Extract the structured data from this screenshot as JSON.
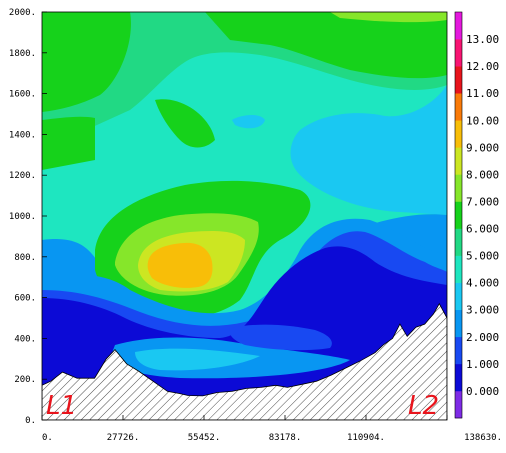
{
  "chart_data": {
    "type": "heatmap",
    "title": "",
    "xlabel": "",
    "ylabel": "",
    "xlim": [
      0,
      138630
    ],
    "ylim": [
      0,
      2000
    ],
    "x_ticks": [
      "0.",
      "27726.",
      "55452.",
      "83178.",
      "110904.",
      "138630."
    ],
    "y_ticks": [
      "0.",
      "200.",
      "400.",
      "600.",
      "800.",
      "1000.",
      "1200.",
      "1400.",
      "1600.",
      "1800.",
      "2000."
    ],
    "colorbar": {
      "labels": [
        "0.000",
        "1.000",
        "2.000",
        "3.000",
        "4.000",
        "5.000",
        "6.000",
        "7.000",
        "8.000",
        "9.000",
        "10.00",
        "11.00",
        "12.00",
        "13.00"
      ],
      "range": [
        -1,
        14
      ],
      "colors": [
        "#7e2be6",
        "#0c0ad6",
        "#1849f2",
        "#0896f2",
        "#1ac8f2",
        "#1ee6c0",
        "#21d984",
        "#16d21b",
        "#86e62a",
        "#cce622",
        "#f8be08",
        "#fa7a08",
        "#e8141c",
        "#f81472",
        "#e418de"
      ]
    },
    "terrain_xy": [
      [
        0,
        170
      ],
      [
        3000,
        190
      ],
      [
        7000,
        235
      ],
      [
        12000,
        205
      ],
      [
        18000,
        205
      ],
      [
        22000,
        300
      ],
      [
        25000,
        345
      ],
      [
        29000,
        275
      ],
      [
        33000,
        240
      ],
      [
        38000,
        190
      ],
      [
        43000,
        140
      ],
      [
        47000,
        130
      ],
      [
        50000,
        120
      ],
      [
        55000,
        118
      ],
      [
        60000,
        135
      ],
      [
        65000,
        140
      ],
      [
        70000,
        155
      ],
      [
        75000,
        160
      ],
      [
        80000,
        170
      ],
      [
        84000,
        160
      ],
      [
        89000,
        175
      ],
      [
        94000,
        190
      ],
      [
        99000,
        220
      ],
      [
        104000,
        255
      ],
      [
        109000,
        290
      ],
      [
        114000,
        330
      ],
      [
        117000,
        370
      ],
      [
        120000,
        400
      ],
      [
        122500,
        470
      ],
      [
        125000,
        410
      ],
      [
        128000,
        455
      ],
      [
        131000,
        470
      ],
      [
        134000,
        520
      ],
      [
        136000,
        570
      ],
      [
        138630,
        500
      ]
    ],
    "labels": [
      "L1",
      "L2"
    ]
  }
}
